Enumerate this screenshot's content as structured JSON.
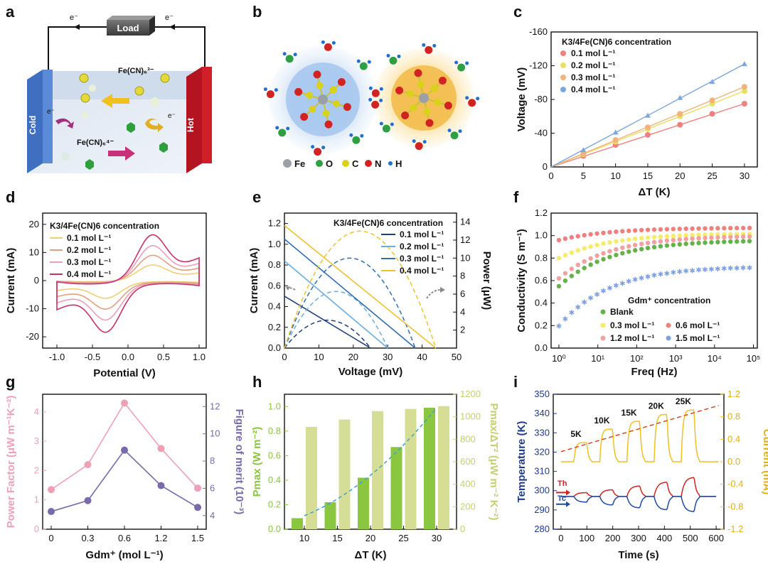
{
  "panel_labels": [
    "a",
    "b",
    "c",
    "d",
    "e",
    "f",
    "g",
    "h",
    "i"
  ],
  "panel_a": {
    "load_label": "Load",
    "electron": "e⁻",
    "cold_label": "Cold",
    "hot_label": "Hot",
    "ion_3": "Fe(CN)₆³⁻",
    "ion_4": "Fe(CN)₆⁴⁻"
  },
  "panel_b": {
    "legend": [
      {
        "label": "Fe",
        "color": "#9aa0a6"
      },
      {
        "label": "O",
        "color": "#2ea043"
      },
      {
        "label": "C",
        "color": "#d8d21a"
      },
      {
        "label": "N",
        "color": "#d22323"
      },
      {
        "label": "H",
        "color": "#1f6fd1"
      }
    ]
  },
  "colors": {
    "c_series": [
      "#f08080",
      "#e8e060",
      "#f2b27a",
      "#7aa7de"
    ],
    "d_series": [
      "#f0cf70",
      "#e0a080",
      "#e8a0b8",
      "#c8306a"
    ],
    "e_series": [
      "#1f3f7a",
      "#6aaee0",
      "#2f6fb0",
      "#f0c030"
    ],
    "f_series": [
      "#66b24a",
      "#f5ec6a",
      "#f08080",
      "#f2a0a0",
      "#7ea0e0"
    ],
    "g_pf": "#f0a0b4",
    "g_zt": "#7a6aaa",
    "h_bar": "#8ac640",
    "h_bar2": "#d6de96",
    "h_fit": "#3aa0d8",
    "i_temp": "#1f3a8a",
    "i_curr": "#f0c020",
    "i_th": "#d22323",
    "i_tc": "#1f4aa0"
  },
  "chart_data": [
    {
      "id": "c",
      "type": "line",
      "title": "K3/4Fe(CN)6 concentration",
      "xlabel": "ΔT (K)",
      "ylabel": "Voltage (mV)",
      "xlim": [
        0,
        32
      ],
      "ylim": [
        0,
        -160
      ],
      "xticks": [
        0,
        5,
        10,
        15,
        20,
        25,
        30
      ],
      "yticks": [
        0,
        -40,
        -80,
        -120,
        -160
      ],
      "x": [
        5,
        10,
        15,
        20,
        25,
        30
      ],
      "series": [
        {
          "name": "0.1 mol L⁻¹",
          "values": [
            -13,
            -26,
            -38,
            -50,
            -63,
            -75
          ]
        },
        {
          "name": "0.2 mol L⁻¹",
          "values": [
            -15,
            -30,
            -45,
            -60,
            -75,
            -90
          ]
        },
        {
          "name": "0.3 mol L⁻¹",
          "values": [
            -16,
            -32,
            -47,
            -63,
            -79,
            -95
          ]
        },
        {
          "name": "0.4 mol L⁻¹",
          "values": [
            -20,
            -41,
            -61,
            -82,
            -101,
            -122
          ]
        }
      ]
    },
    {
      "id": "d",
      "type": "line",
      "title": "K3/4Fe(CN)6 concentration",
      "xlabel": "Potential (V)",
      "ylabel": "Current (mA)",
      "xlim": [
        -1.2,
        1.1
      ],
      "ylim": [
        -24,
        24
      ],
      "xticks": [
        -1.0,
        -0.5,
        0.0,
        0.5,
        1.0
      ],
      "yticks": [
        -20,
        -10,
        0,
        10,
        20
      ],
      "series": [
        {
          "name": "0.1 mol L⁻¹",
          "scale": 6.5
        },
        {
          "name": "0.2 mol L⁻¹",
          "scale": 10.5
        },
        {
          "name": "0.3 mol L⁻¹",
          "scale": 14.5
        },
        {
          "name": "0.4 mol L⁻¹",
          "scale": 19
        }
      ]
    },
    {
      "id": "e",
      "type": "line",
      "title": "K3/4Fe(CN)6 concentration",
      "xlabel": "Voltage (mV)",
      "ylabel": "Current (mA)",
      "y2label": "Power (μW)",
      "xlim": [
        0,
        50
      ],
      "ylim": [
        0,
        1.3
      ],
      "y2lim": [
        0,
        15
      ],
      "xticks": [
        0,
        10,
        20,
        30,
        40,
        50
      ],
      "yticks": [
        0.0,
        0.2,
        0.4,
        0.6,
        0.8,
        1.0,
        1.2
      ],
      "y2ticks": [
        2,
        4,
        6,
        8,
        10,
        12,
        14
      ],
      "series": [
        {
          "name": "0.1 mol L⁻¹",
          "voc": 25,
          "isc": 0.5,
          "pmax": 3.1
        },
        {
          "name": "0.2 mol L⁻¹",
          "voc": 30,
          "isc": 0.84,
          "pmax": 6.3
        },
        {
          "name": "0.3 mol L⁻¹",
          "voc": 38,
          "isc": 1.05,
          "pmax": 10
        },
        {
          "name": "0.4 mol L⁻¹",
          "voc": 44,
          "isc": 1.18,
          "pmax": 13
        }
      ]
    },
    {
      "id": "f",
      "type": "scatter",
      "title": "Gdm⁺ concentration",
      "xlabel": "Freq (Hz)",
      "ylabel": "Conductivity (S m⁻¹)",
      "xlim_log10": [
        -0.2,
        5.1
      ],
      "ylim": [
        0.0,
        1.2
      ],
      "xticks": [
        "10⁰",
        "10¹",
        "10²",
        "10³",
        "10⁴",
        "10⁵"
      ],
      "yticks": [
        0.0,
        0.2,
        0.4,
        0.6,
        0.8,
        1.0,
        1.2
      ],
      "series": [
        {
          "name": "Blank",
          "lo": 0.55,
          "hi": 0.96
        },
        {
          "name": "0.3 mol L⁻¹",
          "lo": 0.8,
          "hi": 1.02
        },
        {
          "name": "0.6 mol L⁻¹",
          "lo": 0.96,
          "hi": 1.07
        },
        {
          "name": "1.2 mol L⁻¹",
          "lo": 0.62,
          "hi": 1.0
        },
        {
          "name": "1.5 mol L⁻¹",
          "lo": 0.2,
          "hi": 0.73
        }
      ]
    },
    {
      "id": "g",
      "type": "line",
      "categories": [
        "0",
        "0.3",
        "0.6",
        "1.2",
        "1.5"
      ],
      "xlabel": "Gdm⁺ (mol L⁻¹)",
      "ylabel": "Power Factor (μW m⁻¹K⁻²)",
      "y2label": "Figure of merit (10⁻³)",
      "ylim": [
        0,
        4.6
      ],
      "y2lim": [
        3,
        12.9
      ],
      "yticks": [
        0,
        1,
        2,
        3,
        4
      ],
      "y2ticks": [
        4,
        6,
        8,
        10,
        12
      ],
      "series": [
        {
          "name": "Power Factor",
          "values": [
            1.35,
            2.2,
            4.3,
            2.75,
            1.4
          ]
        },
        {
          "name": "Figure of merit",
          "values": [
            4.3,
            5.1,
            8.8,
            6.2,
            4.6
          ]
        }
      ]
    },
    {
      "id": "h",
      "type": "bar",
      "categories": [
        "10",
        "15",
        "20",
        "25",
        "30"
      ],
      "xlabel": "ΔT (K)",
      "ylabel": "Pmax (W m⁻²)",
      "y2label": "Pmax/ΔT² (μW m⁻² K⁻²)",
      "ylim": [
        0,
        1.1
      ],
      "y2lim": [
        0,
        1200
      ],
      "yticks": [
        0.0,
        0.2,
        0.4,
        0.6,
        0.8,
        1.0
      ],
      "y2ticks": [
        0,
        200,
        400,
        600,
        800,
        1000,
        1200
      ],
      "series": [
        {
          "name": "Pmax",
          "values": [
            0.09,
            0.22,
            0.42,
            0.67,
            0.99
          ]
        },
        {
          "name": "Pmax/ΔT²",
          "values": [
            910,
            975,
            1050,
            1070,
            1095
          ]
        }
      ]
    },
    {
      "id": "i",
      "type": "line",
      "xlabel": "Time (s)",
      "ylabel": "Temperature (K)",
      "y2label": "Current (mA)",
      "xlim": [
        -30,
        630
      ],
      "ylim": [
        280,
        350
      ],
      "y2lim": [
        -1.2,
        1.2
      ],
      "xticks": [
        0,
        100,
        200,
        300,
        400,
        500,
        600
      ],
      "yticks": [
        280,
        290,
        300,
        310,
        320,
        330,
        340,
        350
      ],
      "y2ticks": [
        -1.2,
        -0.8,
        -0.4,
        0.0,
        0.4,
        0.8,
        1.2
      ],
      "steps": [
        {
          "label": "5K",
          "t": 50,
          "peak": 0.34,
          "th": 299,
          "tc": 294
        },
        {
          "label": "10K",
          "t": 150,
          "peak": 0.58,
          "th": 300.5,
          "tc": 292.5
        },
        {
          "label": "15K",
          "t": 255,
          "peak": 0.72,
          "th": 302.5,
          "tc": 291
        },
        {
          "label": "20K",
          "t": 360,
          "peak": 0.84,
          "th": 304.5,
          "tc": 290
        },
        {
          "label": "25K",
          "t": 465,
          "peak": 0.92,
          "th": 307,
          "tc": 289
        }
      ],
      "markers": {
        "th": "Th",
        "tc": "Tc"
      }
    }
  ]
}
